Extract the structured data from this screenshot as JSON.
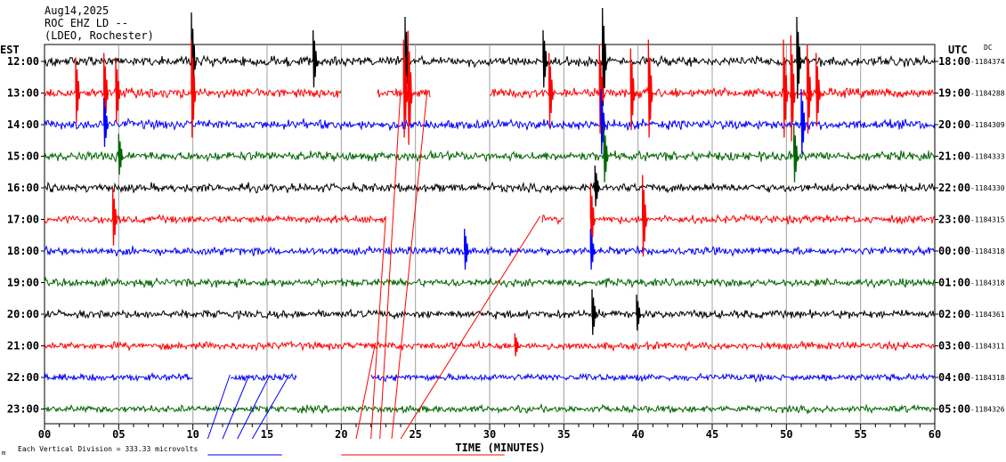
{
  "header": {
    "line1": "Aug14,2025",
    "line2": "ROC EHZ LD --",
    "line3": "(LDEO, Rochester)"
  },
  "left_zone": "EST",
  "right_zone": "UTC",
  "dc_label": "DC",
  "footer": {
    "scale_note": "Each Vertical Division =  333.33 microvolts",
    "scale_marker": "m"
  },
  "colors": {
    "black": "#000000",
    "red": "#ff0000",
    "blue": "#0000ff",
    "green": "#006400",
    "grid": "#a0a0a0"
  },
  "chart_data": {
    "type": "line",
    "xlabel": "TIME (MINUTES)",
    "xlim": [
      0,
      60
    ],
    "xticks": [
      "00",
      "05",
      "10",
      "15",
      "20",
      "25",
      "30",
      "35",
      "40",
      "45",
      "50",
      "55",
      "60"
    ],
    "minor_tick_step": 1,
    "vertical_grid_step": 5,
    "rows": [
      {
        "est": "12:00",
        "utc": "18:00",
        "dc": "-1184374",
        "color": "black",
        "amp": 3.5
      },
      {
        "est": "13:00",
        "utc": "19:00",
        "dc": "-1184288",
        "color": "red",
        "amp": 3.5,
        "gaps": [
          [
            20,
            22.4
          ],
          [
            26,
            30
          ]
        ]
      },
      {
        "est": "14:00",
        "utc": "20:00",
        "dc": "-1184309",
        "color": "blue",
        "amp": 3.5
      },
      {
        "est": "15:00",
        "utc": "21:00",
        "dc": "-1184333",
        "color": "green",
        "amp": 3.5
      },
      {
        "est": "16:00",
        "utc": "22:00",
        "dc": "-1184330",
        "color": "black",
        "amp": 3.2
      },
      {
        "est": "17:00",
        "utc": "23:00",
        "dc": "-1184315",
        "color": "red",
        "amp": 3.0,
        "gaps": [
          [
            23,
            33.5
          ],
          [
            35,
            37
          ]
        ]
      },
      {
        "est": "18:00",
        "utc": "00:00",
        "dc": "-1184318",
        "color": "blue",
        "amp": 3.0
      },
      {
        "est": "19:00",
        "utc": "01:00",
        "dc": "-1184318",
        "color": "green",
        "amp": 3.0
      },
      {
        "est": "20:00",
        "utc": "02:00",
        "dc": "-1184361",
        "color": "black",
        "amp": 3.0
      },
      {
        "est": "21:00",
        "utc": "03:00",
        "dc": "-1184311",
        "color": "red",
        "amp": 2.8
      },
      {
        "est": "22:00",
        "utc": "04:00",
        "dc": "-1184318",
        "color": "blue",
        "amp": 2.6,
        "gaps": [
          [
            10,
            12.5
          ],
          [
            17,
            22
          ]
        ]
      },
      {
        "est": "23:00",
        "utc": "05:00",
        "dc": "-1184326",
        "color": "green",
        "amp": 2.6
      }
    ],
    "spikes": [
      {
        "row": 0,
        "min": 9.9,
        "amp": 55
      },
      {
        "row": 0,
        "min": 18.1,
        "amp": 35
      },
      {
        "row": 0,
        "min": 24.3,
        "amp": 50
      },
      {
        "row": 0,
        "min": 33.6,
        "amp": 35
      },
      {
        "row": 0,
        "min": 37.6,
        "amp": 60
      },
      {
        "row": 0,
        "min": 50.7,
        "amp": 50
      },
      {
        "row": 1,
        "min": 2.1,
        "amp": 40
      },
      {
        "row": 1,
        "min": 4.0,
        "amp": 45
      },
      {
        "row": 1,
        "min": 4.8,
        "amp": 40
      },
      {
        "row": 1,
        "min": 9.9,
        "amp": 60
      },
      {
        "row": 1,
        "min": 24.2,
        "amp": 60
      },
      {
        "row": 1,
        "min": 24.5,
        "amp": 70
      },
      {
        "row": 1,
        "min": 34.0,
        "amp": 45
      },
      {
        "row": 1,
        "min": 37.4,
        "amp": 55
      },
      {
        "row": 1,
        "min": 39.5,
        "amp": 50
      },
      {
        "row": 1,
        "min": 40.7,
        "amp": 60
      },
      {
        "row": 1,
        "min": 49.8,
        "amp": 60
      },
      {
        "row": 1,
        "min": 50.3,
        "amp": 65
      },
      {
        "row": 1,
        "min": 51.4,
        "amp": 55
      },
      {
        "row": 1,
        "min": 52.0,
        "amp": 45
      },
      {
        "row": 2,
        "min": 4.0,
        "amp": 30
      },
      {
        "row": 2,
        "min": 37.5,
        "amp": 40
      },
      {
        "row": 2,
        "min": 51.0,
        "amp": 40
      },
      {
        "row": 3,
        "min": 5.0,
        "amp": 25
      },
      {
        "row": 3,
        "min": 37.7,
        "amp": 35
      },
      {
        "row": 3,
        "min": 50.5,
        "amp": 35
      },
      {
        "row": 4,
        "min": 37.1,
        "amp": 25
      },
      {
        "row": 5,
        "min": 4.6,
        "amp": 35
      },
      {
        "row": 5,
        "min": 36.8,
        "amp": 40
      },
      {
        "row": 5,
        "min": 40.3,
        "amp": 50
      },
      {
        "row": 6,
        "min": 28.3,
        "amp": 25
      },
      {
        "row": 6,
        "min": 36.8,
        "amp": 25
      },
      {
        "row": 8,
        "min": 36.9,
        "amp": 28
      },
      {
        "row": 8,
        "min": 39.9,
        "amp": 22
      },
      {
        "row": 9,
        "min": 31.7,
        "amp": 14
      }
    ],
    "connectors": [
      {
        "color": "blue",
        "x1": 11.0,
        "y1": 493,
        "x2": 12.5,
        "y2": 421
      },
      {
        "color": "blue",
        "x1": 12.0,
        "y1": 493,
        "x2": 13.8,
        "y2": 421
      },
      {
        "color": "blue",
        "x1": 13.0,
        "y1": 493,
        "x2": 15.2,
        "y2": 421
      },
      {
        "color": "blue",
        "x1": 14.0,
        "y1": 493,
        "x2": 16.5,
        "y2": 421
      },
      {
        "color": "red",
        "x1": 21.0,
        "y1": 493,
        "x2": 22.3,
        "y2": 385
      },
      {
        "color": "red",
        "x1": 22.0,
        "y1": 493,
        "x2": 23.0,
        "y2": 243
      },
      {
        "color": "red",
        "x1": 22.6,
        "y1": 493,
        "x2": 24.0,
        "y2": 101
      },
      {
        "color": "red",
        "x1": 23.4,
        "y1": 493,
        "x2": 25.8,
        "y2": 101
      },
      {
        "color": "red",
        "x1": 24.0,
        "y1": 493,
        "x2": 33.4,
        "y2": 243
      }
    ]
  }
}
